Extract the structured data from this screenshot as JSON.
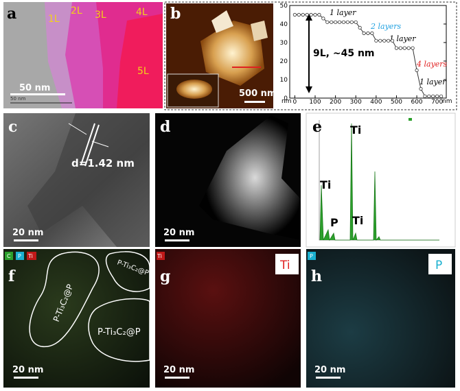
{
  "panel_a": {
    "label": "a",
    "layers": [
      "1L",
      "2L",
      "3L",
      "4L",
      "5L"
    ],
    "scale": "50 nm",
    "scale_small": "50 nm"
  },
  "panel_b": {
    "label": "b",
    "scale": "500 nm"
  },
  "profile": {
    "x_unit_left": "nm",
    "x_unit_right": "nm",
    "total": "9L, ~45 nm",
    "annotations": [
      "1 layer",
      "2 layers",
      "1 layer",
      "4 layers",
      "1 layer"
    ],
    "xlim": [
      -25,
      745
    ],
    "ylim": [
      0,
      50
    ],
    "xticks": [
      0,
      100,
      200,
      300,
      400,
      500,
      600,
      700
    ],
    "yticks": [
      0,
      10,
      20,
      30,
      40,
      50
    ],
    "x": [
      0,
      20,
      40,
      60,
      80,
      100,
      120,
      140,
      160,
      180,
      200,
      220,
      240,
      260,
      280,
      300,
      320,
      340,
      360,
      380,
      400,
      420,
      440,
      460,
      480,
      500,
      520,
      540,
      560,
      580,
      600,
      620,
      640,
      660,
      680,
      700,
      720
    ],
    "values": [
      45,
      45,
      45,
      45,
      45,
      45,
      45,
      43,
      41,
      41,
      41,
      41,
      41,
      41,
      41,
      41,
      38,
      35,
      35,
      35,
      31,
      31,
      31,
      31,
      31,
      27,
      27,
      27,
      27,
      27,
      15,
      5,
      1,
      1,
      1,
      1,
      1
    ]
  },
  "panel_c": {
    "label": "c",
    "spacing": "d=1.42 nm",
    "scale": "20 nm"
  },
  "panel_d": {
    "label": "d",
    "scale": "20 nm"
  },
  "panel_e": {
    "label": "e",
    "peaks": [
      "Ti",
      "Ti",
      "P",
      "Ti"
    ]
  },
  "panel_f": {
    "label": "f",
    "channels": [
      "C",
      "P",
      "Ti"
    ],
    "regions": [
      "P-Ti₃C₂@P",
      "P-Ti₃C₂@P",
      "P-Ti₃C₂@P"
    ],
    "scale": "20 nm"
  },
  "panel_g": {
    "label": "g",
    "channel": "Ti",
    "badge": "Ti",
    "scale": "20 nm"
  },
  "panel_h": {
    "label": "h",
    "channel": "P",
    "badge": "P",
    "scale": "20 nm"
  }
}
